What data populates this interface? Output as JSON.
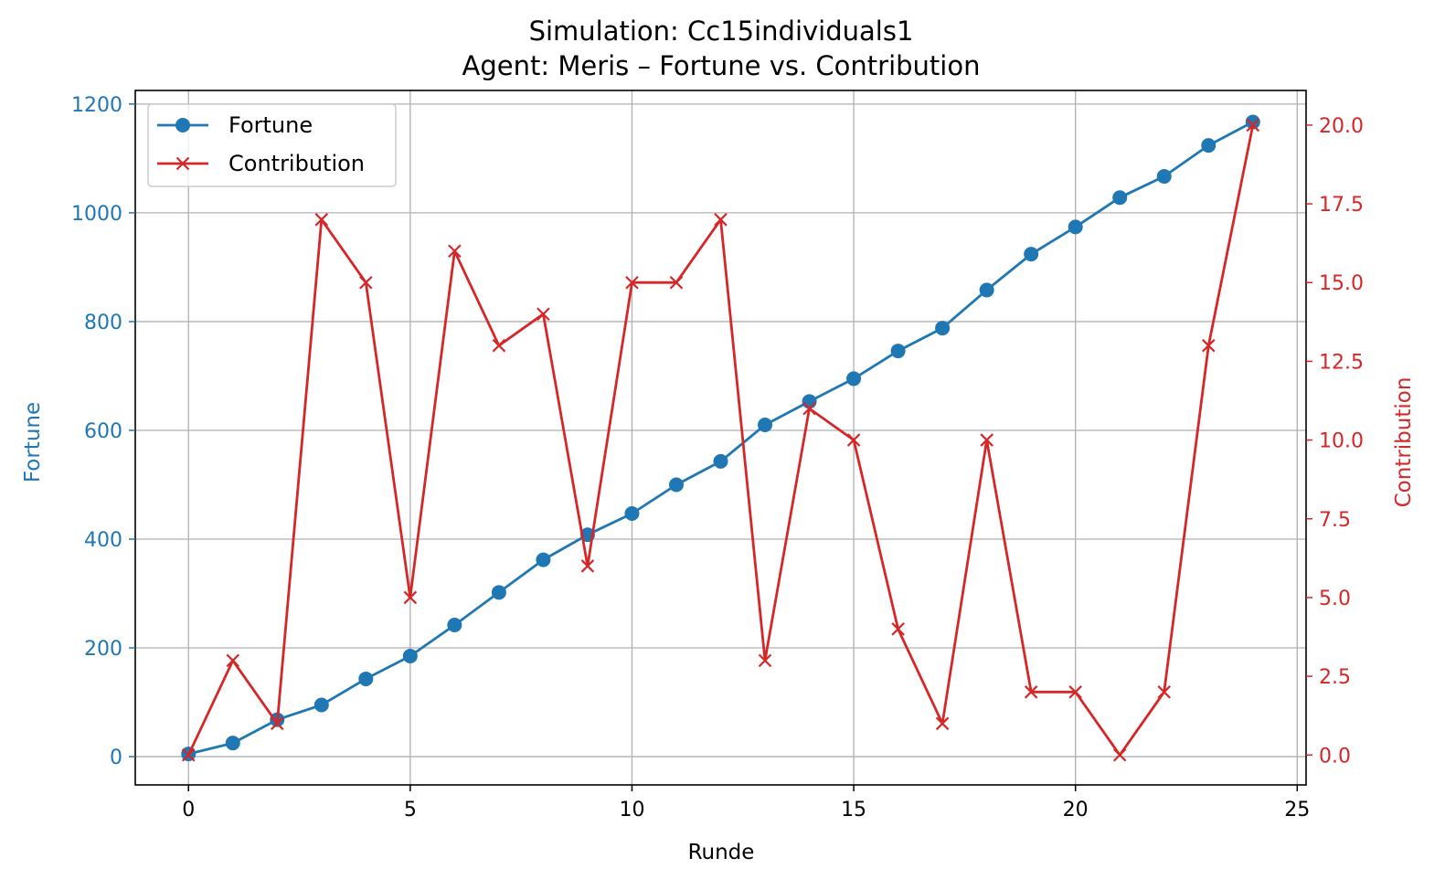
{
  "chart_data": {
    "type": "line",
    "title": "Simulation: Cc15individuals1",
    "subtitle": "Agent: Meris – Fortune vs. Contribution",
    "xlabel": "Runde",
    "ylabel_left": "Fortune",
    "ylabel_right": "Contribution",
    "xlim": [
      -1.2,
      25.2
    ],
    "ylim_left": [
      -52,
      1225
    ],
    "ylim_right": [
      -0.95,
      21.1
    ],
    "x_ticks": [
      0,
      5,
      10,
      15,
      20,
      25
    ],
    "y_left_ticks": [
      0,
      200,
      400,
      600,
      800,
      1000,
      1200
    ],
    "y_right_ticks": [
      "0.0",
      "2.5",
      "5.0",
      "7.5",
      "10.0",
      "12.5",
      "15.0",
      "17.5",
      "20.0"
    ],
    "grid": true,
    "legend_position": "upper-left",
    "x": [
      0,
      1,
      2,
      3,
      4,
      5,
      6,
      7,
      8,
      9,
      10,
      11,
      12,
      13,
      14,
      15,
      16,
      17,
      18,
      19,
      20,
      21,
      22,
      23,
      24
    ],
    "series": [
      {
        "name": "Fortune",
        "axis": "left",
        "color": "#1f77b4",
        "marker": "circle",
        "values": [
          5,
          25,
          68,
          95,
          143,
          185,
          242,
          302,
          362,
          408,
          447,
          500,
          543,
          610,
          653,
          695,
          746,
          788,
          858,
          924,
          974,
          1028,
          1067,
          1124,
          1167
        ]
      },
      {
        "name": "Contribution",
        "axis": "right",
        "color": "#d62728",
        "marker": "x",
        "values": [
          0,
          3,
          1,
          17,
          15,
          5,
          16,
          13,
          14,
          6,
          15,
          15,
          17,
          3,
          11,
          10,
          4,
          1,
          10,
          2,
          2,
          0,
          2,
          13,
          20
        ]
      }
    ]
  }
}
